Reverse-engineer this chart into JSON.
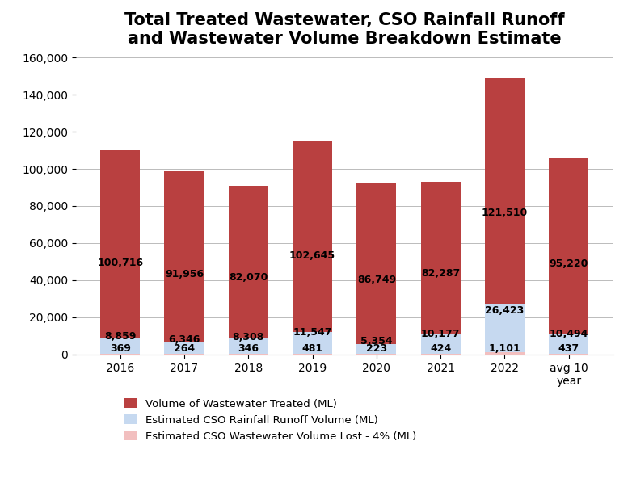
{
  "title": "Total Treated Wastewater, CSO Rainfall Runoff\nand Wastewater Volume Breakdown Estimate",
  "categories": [
    "2016",
    "2017",
    "2018",
    "2019",
    "2020",
    "2021",
    "2022",
    "avg 10\nyear"
  ],
  "wastewater_treated": [
    100716,
    91956,
    82070,
    102645,
    86749,
    82287,
    121510,
    95220
  ],
  "cso_rainfall": [
    8859,
    6346,
    8308,
    11547,
    5354,
    10177,
    26423,
    10494
  ],
  "cso_wastewater": [
    369,
    264,
    346,
    481,
    223,
    424,
    1101,
    437
  ],
  "color_wastewater": "#B94040",
  "color_rainfall": "#C6D9F0",
  "color_cso_waste": "#F2BFBF",
  "ylim": [
    0,
    160000
  ],
  "yticks": [
    0,
    20000,
    40000,
    60000,
    80000,
    100000,
    120000,
    140000,
    160000
  ],
  "legend_labels": [
    "Volume of Wastewater Treated (ML)",
    "Estimated CSO Rainfall Runoff Volume (ML)",
    "Estimated CSO Wastewater Volume Lost - 4% (ML)"
  ],
  "title_fontsize": 15,
  "tick_fontsize": 10,
  "label_fontsize": 9
}
